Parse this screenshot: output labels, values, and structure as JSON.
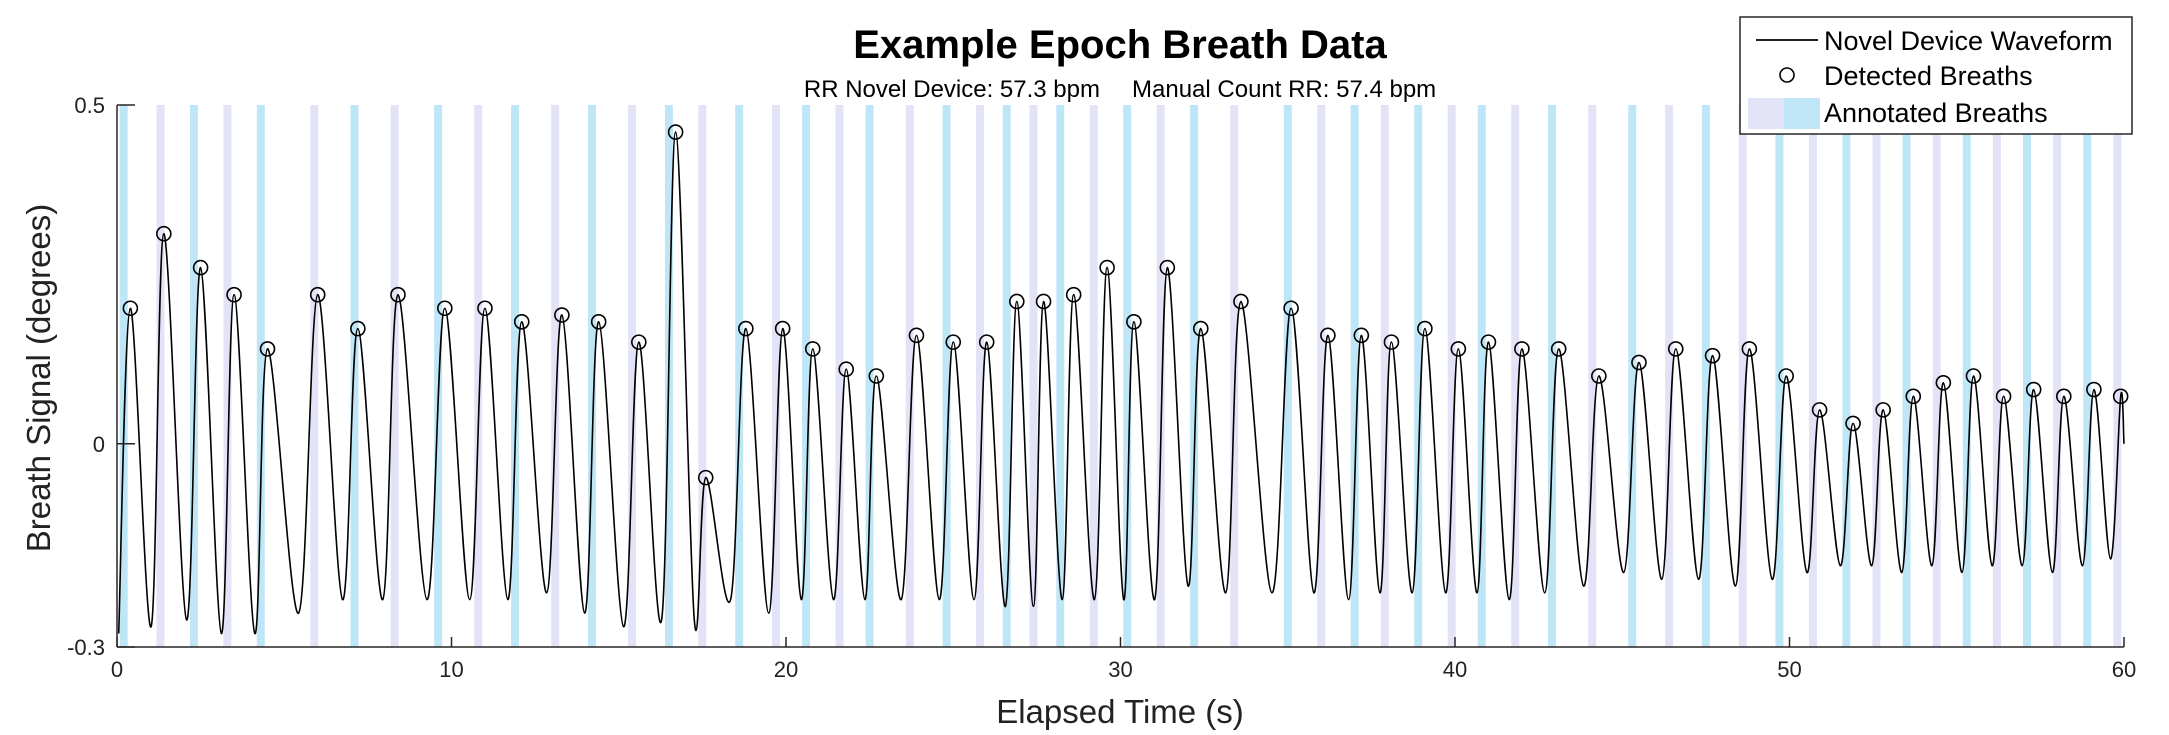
{
  "chart_data": {
    "type": "line",
    "title": "Example Epoch Breath Data",
    "subtitle_left": "RR Novel Device: 57.3 bpm",
    "subtitle_right": "Manual Count RR: 57.4 bpm",
    "xlabel": "Elapsed Time (s)",
    "ylabel": "Breath Signal (degrees)",
    "xlim": [
      0,
      60
    ],
    "ylim": [
      -0.3,
      0.5
    ],
    "xticks": [
      0,
      10,
      20,
      30,
      40,
      50,
      60
    ],
    "xtick_labels": [
      "0",
      "10",
      "20",
      "30",
      "40",
      "50",
      "60"
    ],
    "yticks": [
      -0.3,
      0,
      0.5
    ],
    "ytick_labels": [
      "-0.3",
      "0",
      "0.5"
    ],
    "grid": false,
    "legend_position": "top-right",
    "legend": [
      {
        "label": "Novel Device Waveform",
        "kind": "line"
      },
      {
        "label": "Detected Breaths",
        "kind": "marker"
      },
      {
        "label": "Annotated Breaths",
        "kind": "patch"
      }
    ],
    "colors": {
      "waveform": "#000000",
      "annotation_a": "#bfe6f7",
      "annotation_b": "#e3e3f8"
    },
    "series": [
      {
        "name": "Detected Breaths",
        "kind": "marker",
        "x": [
          0.4,
          1.4,
          2.5,
          3.5,
          4.5,
          6.0,
          7.2,
          8.4,
          9.8,
          11.0,
          12.1,
          13.3,
          14.4,
          15.6,
          16.7,
          17.6,
          18.8,
          19.9,
          20.8,
          21.8,
          22.7,
          23.9,
          25.0,
          26.0,
          26.9,
          27.7,
          28.6,
          29.6,
          30.4,
          31.4,
          32.4,
          33.6,
          35.1,
          36.2,
          37.2,
          38.1,
          39.1,
          40.1,
          41.0,
          42.0,
          43.1,
          44.3,
          45.5,
          46.6,
          47.7,
          48.8,
          49.9,
          50.9,
          51.9,
          52.8,
          53.7,
          54.6,
          55.5,
          56.4,
          57.3,
          58.2,
          59.1,
          59.9
        ],
        "y": [
          0.2,
          0.31,
          0.26,
          0.22,
          0.14,
          0.22,
          0.17,
          0.22,
          0.2,
          0.2,
          0.18,
          0.19,
          0.18,
          0.15,
          0.46,
          -0.05,
          0.17,
          0.17,
          0.14,
          0.11,
          0.1,
          0.16,
          0.15,
          0.15,
          0.21,
          0.21,
          0.22,
          0.26,
          0.18,
          0.26,
          0.17,
          0.21,
          0.2,
          0.16,
          0.16,
          0.15,
          0.17,
          0.14,
          0.15,
          0.14,
          0.14,
          0.1,
          0.12,
          0.14,
          0.13,
          0.14,
          0.1,
          0.05,
          0.03,
          0.05,
          0.07,
          0.09,
          0.1,
          0.07,
          0.08,
          0.07,
          0.08,
          0.07
        ]
      },
      {
        "name": "Novel Device Waveform",
        "kind": "line",
        "troughs_y": [
          -0.28,
          -0.27,
          -0.26,
          -0.28,
          -0.28,
          -0.25,
          -0.23,
          -0.23,
          -0.23,
          -0.23,
          -0.23,
          -0.22,
          -0.25,
          -0.27,
          -0.26,
          -0.26,
          -0.23,
          -0.25,
          -0.23,
          -0.23,
          -0.23,
          -0.23,
          -0.23,
          -0.23,
          -0.24,
          -0.24,
          -0.23,
          -0.23,
          -0.23,
          -0.23,
          -0.21,
          -0.22,
          -0.22,
          -0.22,
          -0.23,
          -0.22,
          -0.22,
          -0.22,
          -0.22,
          -0.23,
          -0.22,
          -0.21,
          -0.19,
          -0.2,
          -0.2,
          -0.21,
          -0.2,
          -0.19,
          -0.18,
          -0.18,
          -0.19,
          -0.18,
          -0.19,
          -0.18,
          -0.18,
          -0.19,
          -0.18,
          -0.17
        ],
        "end_y": 0.0
      },
      {
        "name": "Annotated Breaths",
        "kind": "patch",
        "x": [
          0.2,
          1.3,
          2.3,
          3.3,
          4.3,
          5.9,
          7.1,
          8.3,
          9.6,
          10.8,
          11.9,
          13.1,
          14.2,
          15.4,
          16.5,
          17.5,
          18.6,
          19.7,
          20.6,
          21.6,
          22.5,
          23.7,
          24.8,
          25.8,
          26.6,
          27.4,
          28.2,
          29.2,
          30.2,
          31.2,
          32.2,
          33.4,
          35.0,
          36.0,
          37.0,
          37.9,
          38.9,
          39.9,
          40.8,
          41.8,
          42.9,
          44.1,
          45.3,
          46.4,
          47.5,
          48.6,
          49.7,
          50.7,
          51.7,
          52.6,
          53.5,
          54.4,
          55.3,
          56.2,
          57.1,
          58.0,
          58.9,
          59.8
        ]
      }
    ]
  }
}
